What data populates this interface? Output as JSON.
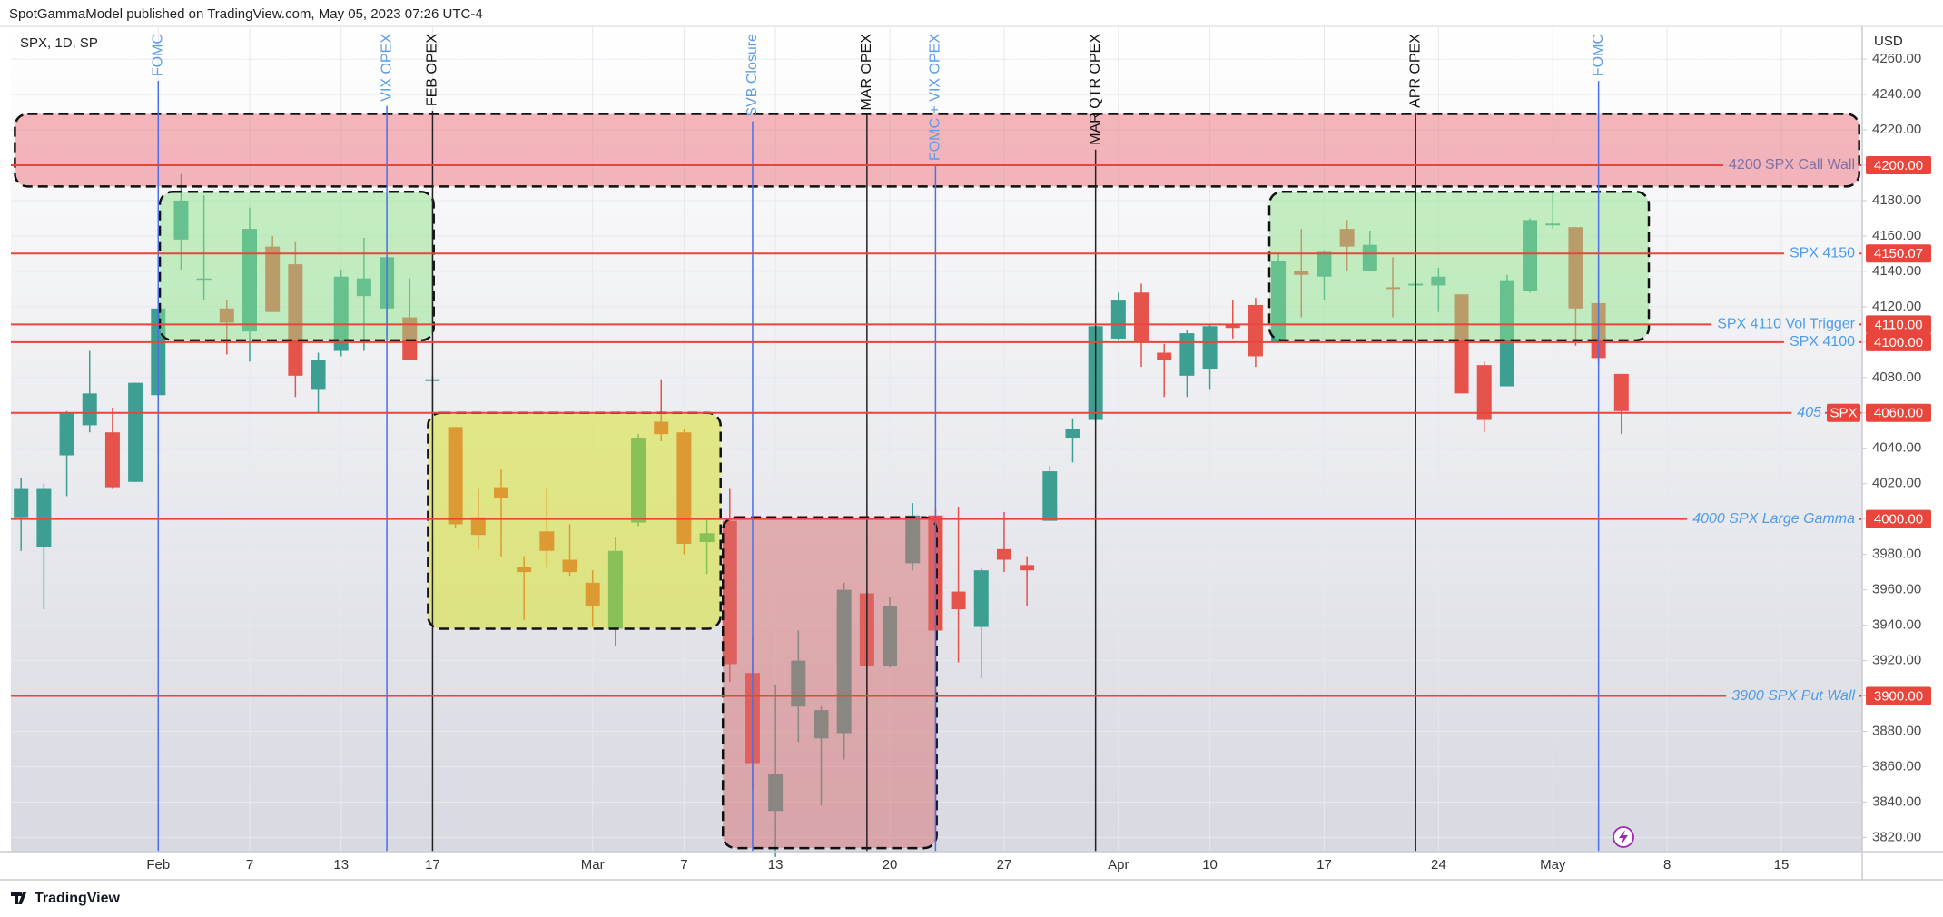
{
  "header": "SpotGammaModel published on TradingView.com, May 05, 2023 07:26 UTC-4",
  "footer": "TradingView",
  "chart_data": {
    "type": "candlestick",
    "title": "SPX, 1D, SP",
    "y_unit": "USD",
    "categories": [
      null,
      null,
      null,
      null,
      null,
      null,
      "Feb",
      null,
      null,
      null,
      "7",
      null,
      null,
      null,
      "13",
      null,
      null,
      null,
      "17",
      null,
      null,
      null,
      null,
      null,
      null,
      "Mar",
      null,
      null,
      null,
      "7",
      null,
      null,
      null,
      "13",
      null,
      null,
      null,
      null,
      "20",
      null,
      null,
      null,
      null,
      "27",
      null,
      null,
      null,
      null,
      "Apr",
      null,
      null,
      null,
      "10",
      null,
      null,
      null,
      null,
      "17",
      null,
      null,
      null,
      null,
      "24",
      null,
      null,
      null,
      null,
      "May",
      null,
      null,
      null,
      null,
      "8",
      null,
      null,
      null,
      null,
      "15",
      null,
      null,
      null
    ],
    "open": [
      4001,
      3984,
      4036,
      4053,
      4049,
      4021,
      4070,
      4158,
      4136,
      4119,
      4106,
      4154,
      4144,
      4073,
      4095,
      4126,
      4119,
      4114,
      4078,
      4052,
      4001,
      4018,
      3973,
      3993,
      3977,
      3964,
      3938,
      3998,
      4055,
      4049,
      3987,
      3999,
      3913,
      3835,
      3894,
      3876,
      3879,
      3958,
      3917,
      3975,
      4002,
      3959,
      3939,
      3983,
      3974,
      3999,
      4046,
      4056,
      4102,
      4128,
      4094,
      4081,
      4085,
      4110,
      4121,
      4100,
      4140,
      4137,
      4164,
      4140,
      4131,
      4132,
      4132,
      4127,
      4087,
      4075,
      4129,
      4166,
      4165,
      4122,
      4082,
      null,
      null,
      null,
      null,
      null,
      null,
      null,
      null,
      null,
      null
    ],
    "high": [
      4023,
      4020,
      4061,
      4095,
      4063,
      4077,
      4148,
      4195,
      4183,
      4124,
      4176,
      4160,
      4157,
      4094,
      4141,
      4159,
      4148,
      4136,
      4081,
      4052,
      4017,
      4028,
      3979,
      4018,
      3997,
      3971,
      3990,
      4048,
      4079,
      4051,
      4000,
      4017,
      3934,
      3906,
      3937,
      3894,
      3964,
      3959,
      3956,
      4009,
      4006,
      4007,
      3972,
      4004,
      3979,
      4030,
      4057,
      4110,
      4128,
      4133,
      4099,
      4107,
      4110,
      4124,
      4125,
      4150,
      4164,
      4152,
      4169,
      4163,
      4148,
      4138,
      4142,
      4127,
      4089,
      4138,
      4170,
      4186,
      4165,
      4148,
      4082,
      null,
      null,
      null,
      null,
      null,
      null,
      null,
      null,
      null,
      null
    ],
    "low": [
      3982,
      3949,
      4013,
      4049,
      4017,
      4021,
      4037,
      4141,
      4124,
      4093,
      4089,
      4117,
      4069,
      4060,
      4092,
      4095,
      4103,
      4090,
      4047,
      3995,
      3983,
      3979,
      3943,
      3973,
      3968,
      3939,
      3928,
      3996,
      4044,
      3980,
      3969,
      3908,
      3847,
      3809,
      3874,
      3838,
      3864,
      3901,
      3916,
      3971,
      3936,
      3919,
      3910,
      3970,
      3951,
      3999,
      4032,
      4056,
      4101,
      4086,
      4069,
      4069,
      4073,
      4102,
      4086,
      4100,
      4114,
      4124,
      4140,
      4140,
      4114,
      4113,
      4117,
      4071,
      4049,
      4075,
      4128,
      4164,
      4098,
      4088,
      4048,
      null,
      null,
      null,
      null,
      null,
      null,
      null,
      null,
      null,
      null
    ],
    "close": [
      4017,
      4017,
      4060,
      4071,
      4018,
      4077,
      4119,
      4180,
      4136,
      4111,
      4164,
      4117,
      4081,
      4090,
      4137,
      4136,
      4148,
      4090,
      4079,
      3997,
      3991,
      4012,
      3970,
      3982,
      3970,
      3951,
      3982,
      4046,
      4048,
      3986,
      3992,
      3918,
      3862,
      3856,
      3920,
      3892,
      3960,
      3917,
      3951,
      4002,
      3937,
      3949,
      3971,
      3977,
      3971,
      4027,
      4051,
      4109,
      4124,
      4100,
      4090,
      4105,
      4109,
      4108,
      4092,
      4146,
      4138,
      4151,
      4154,
      4155,
      4130,
      4133,
      4137,
      4071,
      4056,
      4135,
      4169,
      4167,
      4119,
      4091,
      4061,
      null,
      null,
      null,
      null,
      null,
      null,
      null,
      null,
      null,
      null
    ],
    "up_color": "#3d9f92",
    "down_color": "#e5534b",
    "ylim": [
      3812,
      4278
    ],
    "yticks": [
      {
        "value": 3820,
        "label": "3820.00"
      },
      {
        "value": 3840,
        "label": "3840.00"
      },
      {
        "value": 3860,
        "label": "3860.00"
      },
      {
        "value": 3880,
        "label": "3880.00"
      },
      {
        "value": 3900,
        "label": "3900.00"
      },
      {
        "value": 3920,
        "label": "3920.00"
      },
      {
        "value": 3940,
        "label": "3940.00"
      },
      {
        "value": 3960,
        "label": "3960.00"
      },
      {
        "value": 3980,
        "label": "3980.00"
      },
      {
        "value": 4000,
        "label": "4000.00"
      },
      {
        "value": 4020,
        "label": "4020.00"
      },
      {
        "value": 4040,
        "label": "4040.00"
      },
      {
        "value": 4060,
        "label": "4060.00"
      },
      {
        "value": 4080,
        "label": "4080.00"
      },
      {
        "value": 4100,
        "label": "4100.00"
      },
      {
        "value": 4120,
        "label": "4120.00"
      },
      {
        "value": 4140,
        "label": "4140.00"
      },
      {
        "value": 4160,
        "label": "4160.00"
      },
      {
        "value": 4180,
        "label": "4180.00"
      },
      {
        "value": 4200,
        "label": "4200.00"
      },
      {
        "value": 4220,
        "label": "4220.00"
      },
      {
        "value": 4240,
        "label": "4240.00"
      },
      {
        "value": 4260,
        "label": "4260.00"
      }
    ],
    "grid": true,
    "zones": [
      {
        "x": [
          -0.27,
          80.4
        ],
        "y": [
          4188,
          4229
        ],
        "color": "#eb6f7a"
      },
      {
        "x": [
          6.07,
          18.05
        ],
        "y": [
          4101,
          4185
        ],
        "color": "#8fe38a"
      },
      {
        "x": [
          17.8,
          30.6
        ],
        "y": [
          3938,
          4060
        ],
        "color": "#d6e21c"
      },
      {
        "x": [
          30.7,
          40.05
        ],
        "y": [
          3814,
          4001
        ],
        "color": "#d86f72"
      },
      {
        "x": [
          54.6,
          71.2
        ],
        "y": [
          4101,
          4185
        ],
        "color": "#8fe38a"
      }
    ],
    "events": [
      {
        "at": 6,
        "label": "FOMC",
        "color": "#4a6fe8",
        "label_color": "#5b9de8"
      },
      {
        "at": 16,
        "label": "VIX OPEX",
        "color": "#4a6fe8",
        "label_color": "#5b9de8"
      },
      {
        "at": 18,
        "label": "FEB OPEX",
        "color": "#222222",
        "label_color": "#111111"
      },
      {
        "at": 32,
        "label": "SVB Closure",
        "color": "#4a6fe8",
        "label_color": "#5b9de8"
      },
      {
        "at": 37,
        "label": "MAR OPEX",
        "color": "#222222",
        "label_color": "#111111"
      },
      {
        "at": 40,
        "label": "FOMC + VIX OPEX",
        "color": "#4a6fe8",
        "label_color": "#5b9de8"
      },
      {
        "at": 47,
        "label": "MAR QTR OPEX",
        "color": "#222222",
        "label_color": "#111111"
      },
      {
        "at": 61,
        "label": "APR OPEX",
        "color": "#222222",
        "label_color": "#111111"
      },
      {
        "at": 69,
        "label": "FOMC",
        "color": "#4a6fe8",
        "label_color": "#5b9de8"
      }
    ],
    "levels": [
      {
        "value": 4200,
        "value_label": "4200.00",
        "label": "4200 SPX Call Wall",
        "color": "#e8453c",
        "label_color": "#7f6fa8",
        "italic": false
      },
      {
        "value": 4150.07,
        "value_label": "4150.07",
        "label": "SPX 4150",
        "color": "#e8453c",
        "label_color": "#4d9ce8",
        "italic": false
      },
      {
        "value": 4110,
        "value_label": "4110.00",
        "label": "SPX 4110 Vol Trigger",
        "color": "#e8453c",
        "label_color": "#4d9ce8",
        "italic": false
      },
      {
        "value": 4100,
        "value_label": "4100.00",
        "label": "SPX 4100",
        "color": "#e8453c",
        "label_color": "#4d9ce8",
        "italic": false
      },
      {
        "value": 4060,
        "value_label": "4060.00",
        "label": "405",
        "tag": "SPX",
        "color": "#e8453c",
        "label_color": "#4d9ce8",
        "italic": true
      },
      {
        "value": 4000,
        "value_label": "4000.00",
        "label": "4000 SPX Large Gamma",
        "color": "#e8453c",
        "label_color": "#4d9ce8",
        "italic": true
      },
      {
        "value": 3900,
        "value_label": "3900.00",
        "label": "3900 SPX Put Wall",
        "color": "#e8453c",
        "label_color": "#4d9ce8",
        "italic": true
      }
    ]
  }
}
